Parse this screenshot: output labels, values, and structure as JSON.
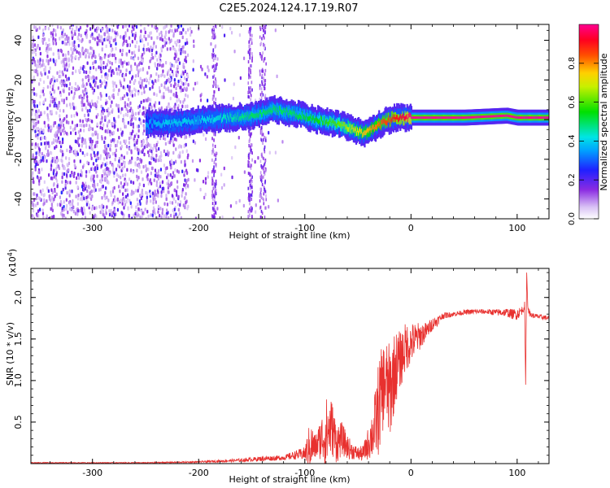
{
  "figure_title": "C2E5.2024.124.17.19.R07",
  "chart_data": [
    {
      "type": "heatmap",
      "title": "C2E5.2024.124.17.19.R07",
      "xlabel": "Height of straight line (km)",
      "ylabel": "Frequency (Hz)",
      "xlim": [
        -358,
        130
      ],
      "ylim": [
        -50,
        48
      ],
      "xticks": [
        -300,
        -200,
        -100,
        0,
        100
      ],
      "xtick_labels": [
        "-300",
        "-200",
        "-100",
        "0",
        "100"
      ],
      "yticks": [
        -40,
        -20,
        0,
        20,
        40
      ],
      "ytick_labels": [
        "-40",
        "-20",
        "0",
        "20",
        "40"
      ],
      "colorbar": {
        "label": "Normalized spectral amplitude",
        "range": [
          0,
          1
        ],
        "ticks": [
          0.0,
          0.2,
          0.4,
          0.6,
          0.8
        ],
        "tick_labels": [
          "0.0",
          "0.2",
          "0.4",
          "0.6",
          "0.8"
        ],
        "colormap": "rainbow (white-violet-blue-cyan-green-yellow-red-magenta)"
      },
      "ridge_track": {
        "note": "dominant spectral ridge (frequency vs height), approximate",
        "x": [
          -250,
          -230,
          -200,
          -170,
          -150,
          -130,
          -110,
          -90,
          -70,
          -55,
          -45,
          -35,
          -25,
          -15,
          -5,
          0,
          50,
          90,
          100,
          130
        ],
        "y": [
          -2,
          -2,
          0,
          1,
          2,
          5,
          3,
          0,
          -2,
          -5,
          -7,
          -4,
          -1,
          1,
          1,
          1,
          1,
          2,
          1,
          1
        ],
        "amplitude": [
          0.35,
          0.4,
          0.4,
          0.45,
          0.5,
          0.5,
          0.5,
          0.55,
          0.6,
          0.7,
          0.75,
          0.8,
          0.85,
          0.9,
          0.95,
          1.0,
          1.0,
          1.0,
          1.0,
          1.0
        ]
      },
      "noise_region_x": [
        -358,
        -120
      ]
    },
    {
      "type": "line",
      "xlabel": "Height of straight line (km)",
      "ylabel": "SNR (10 * v/v)",
      "y_multiplier_label": "(x10",
      "y_multiplier_exponent": "4",
      "xlim": [
        -358,
        130
      ],
      "ylim": [
        0,
        2.35
      ],
      "xticks": [
        -300,
        -200,
        -100,
        0,
        100
      ],
      "xtick_labels": [
        "-300",
        "-200",
        "-100",
        "0",
        "100"
      ],
      "yticks": [
        0.5,
        1.0,
        1.5,
        2.0
      ],
      "ytick_labels": [
        "0.5",
        "1.0",
        "1.5",
        "2.0"
      ],
      "color": "#e8312f",
      "series": [
        {
          "name": "SNR",
          "x": [
            -358,
            -300,
            -250,
            -200,
            -160,
            -140,
            -120,
            -110,
            -100,
            -95,
            -90,
            -85,
            -80,
            -75,
            -70,
            -65,
            -60,
            -55,
            -50,
            -45,
            -40,
            -35,
            -30,
            -25,
            -20,
            -15,
            -10,
            -5,
            0,
            5,
            10,
            15,
            20,
            25,
            30,
            40,
            50,
            60,
            70,
            80,
            90,
            95,
            100,
            105,
            107,
            108,
            109,
            110,
            112,
            115,
            120,
            130
          ],
          "y": [
            0.01,
            0.01,
            0.01,
            0.02,
            0.04,
            0.06,
            0.07,
            0.1,
            0.12,
            0.22,
            0.2,
            0.3,
            0.35,
            0.45,
            0.25,
            0.3,
            0.2,
            0.15,
            0.12,
            0.12,
            0.25,
            0.4,
            0.7,
            1.0,
            0.85,
            1.15,
            1.25,
            1.4,
            1.45,
            1.5,
            1.55,
            1.6,
            1.68,
            1.72,
            1.78,
            1.8,
            1.82,
            1.83,
            1.83,
            1.82,
            1.82,
            1.8,
            1.8,
            1.85,
            1.9,
            0.95,
            2.3,
            1.9,
            1.8,
            1.78,
            1.77,
            1.75
          ],
          "noise_amplitude": [
            0.005,
            0.005,
            0.005,
            0.01,
            0.02,
            0.03,
            0.03,
            0.05,
            0.08,
            0.3,
            0.15,
            0.25,
            0.45,
            0.35,
            0.25,
            0.2,
            0.15,
            0.1,
            0.08,
            0.1,
            0.2,
            0.35,
            0.6,
            0.5,
            0.6,
            0.45,
            0.35,
            0.3,
            0.25,
            0.2,
            0.15,
            0.1,
            0.08,
            0.06,
            0.04,
            0.03,
            0.03,
            0.03,
            0.03,
            0.04,
            0.05,
            0.06,
            0.07,
            0.05,
            0.05,
            0.0,
            0.0,
            0.05,
            0.04,
            0.03,
            0.03,
            0.03
          ]
        }
      ]
    }
  ]
}
